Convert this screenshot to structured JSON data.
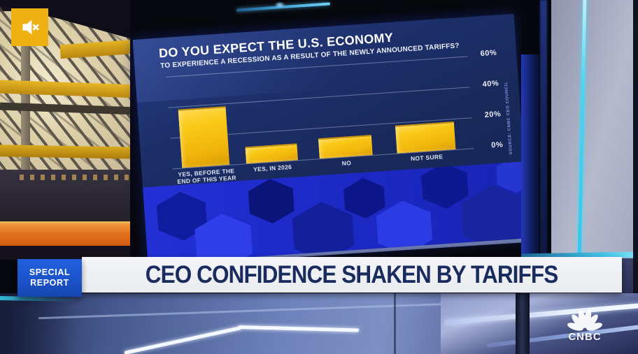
{
  "broadcast": {
    "badge_line1": "SPECIAL",
    "badge_line2": "REPORT",
    "headline": "CEO CONFIDENCE SHAKEN BY TARIFFS",
    "network": "CNBC"
  },
  "chart_data": {
    "type": "bar",
    "title": "DO YOU EXPECT THE U.S. ECONOMY",
    "subtitle": "TO EXPERIENCE A RECESSION AS A RESULT OF THE NEWLY ANNOUNCED TARIFFS?",
    "categories": [
      "YES, BEFORE THE END OF THIS YEAR",
      "YES, IN 2026",
      "NO",
      "NOT SURE"
    ],
    "values": [
      38,
      11,
      13,
      18
    ],
    "unit": "%",
    "ylim": [
      0,
      60
    ],
    "yticks": [
      "60%",
      "40%",
      "20%",
      "0%"
    ],
    "grid": true,
    "legend": false,
    "source": "SOURCE: CNBC CEO COUNCIL",
    "bar_color": "#F7C515",
    "background_color": "#18285C"
  },
  "icons": {
    "mute": "muted-speaker-icon"
  },
  "colors": {
    "badge_blue": "#1B52C8",
    "banner_bg": "#F0F1F4",
    "headline_text": "#1A2B5E",
    "accent_cyan": "#3FD4F0",
    "mute_yellow": "#EFB012",
    "cube_blue": "#1D2AC8"
  }
}
